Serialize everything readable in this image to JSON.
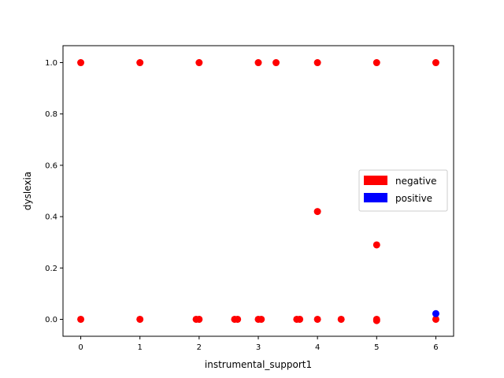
{
  "chart_data": {
    "type": "scatter",
    "title": "",
    "xlabel": "instrumental_support1",
    "ylabel": "dyslexia",
    "xlim": [
      -0.3,
      6.3
    ],
    "ylim": [
      -0.066,
      1.066
    ],
    "x_ticks": [
      0,
      1,
      2,
      3,
      4,
      5,
      6
    ],
    "x_tick_labels": [
      "0",
      "1",
      "2",
      "3",
      "4",
      "5",
      "6"
    ],
    "y_ticks": [
      0.0,
      0.2,
      0.4,
      0.6,
      0.8,
      1.0
    ],
    "y_tick_labels": [
      "0.0",
      "0.2",
      "0.4",
      "0.6",
      "0.8",
      "1.0"
    ],
    "grid": false,
    "legend_position": "center-right",
    "series": [
      {
        "name": "negative",
        "color": "#ff0000",
        "points": [
          [
            0,
            1.0
          ],
          [
            1,
            1.0
          ],
          [
            2,
            1.0
          ],
          [
            3,
            1.0
          ],
          [
            3.3,
            1.0
          ],
          [
            4,
            1.0
          ],
          [
            5,
            1.0
          ],
          [
            6,
            1.0
          ],
          [
            4,
            0.42
          ],
          [
            5,
            0.29
          ],
          [
            0,
            0.0
          ],
          [
            1,
            0.0
          ],
          [
            1.95,
            0.0
          ],
          [
            2,
            0.0
          ],
          [
            2.6,
            0.0
          ],
          [
            2.65,
            0.0
          ],
          [
            3,
            0.0
          ],
          [
            3.05,
            0.0
          ],
          [
            3.65,
            0.0
          ],
          [
            3.7,
            0.0
          ],
          [
            4,
            0.0
          ],
          [
            4.4,
            0.0
          ],
          [
            5,
            0.0
          ],
          [
            5,
            -0.005
          ],
          [
            6,
            0.0
          ]
        ]
      },
      {
        "name": "positive",
        "color": "#0000ff",
        "points": [
          [
            6,
            0.022
          ]
        ]
      }
    ]
  }
}
